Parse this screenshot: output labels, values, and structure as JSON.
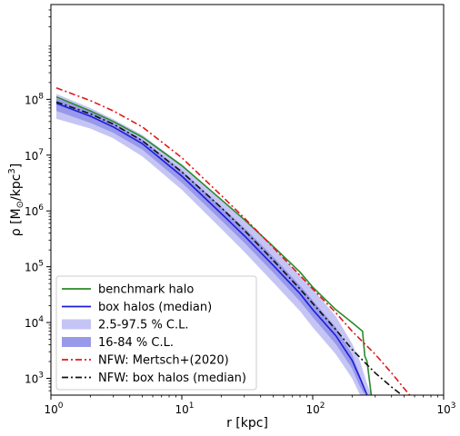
{
  "chart_data": {
    "type": "line",
    "xlabel": "r [kpc]",
    "ylabel_prefix": "ρ [M",
    "ylabel_sub": "⊙",
    "ylabel_mid": "/kpc",
    "ylabel_sup": "3",
    "ylabel_suffix": "]",
    "xscale": "log",
    "yscale": "log",
    "xlim": [
      1,
      1000
    ],
    "ylim": [
      500,
      5000000000
    ],
    "x_ticks": [
      {
        "value": 1,
        "base": "10",
        "exp": "0"
      },
      {
        "value": 10,
        "base": "10",
        "exp": "1"
      },
      {
        "value": 100,
        "base": "10",
        "exp": "2"
      },
      {
        "value": 1000,
        "base": "10",
        "exp": "3"
      }
    ],
    "y_ticks": [
      {
        "value": 1000,
        "base": "10",
        "exp": "3"
      },
      {
        "value": 10000,
        "base": "10",
        "exp": "4"
      },
      {
        "value": 100000,
        "base": "10",
        "exp": "5"
      },
      {
        "value": 1000000,
        "base": "10",
        "exp": "6"
      },
      {
        "value": 10000000,
        "base": "10",
        "exp": "7"
      },
      {
        "value": 100000000,
        "base": "10",
        "exp": "8"
      }
    ],
    "legend_position": "lower-left",
    "bands": [
      {
        "name": "2.5-97.5 % C.L.",
        "color": "#c5c5f5",
        "x": [
          1.1,
          2,
          3,
          5,
          10,
          20,
          30,
          50,
          80,
          100,
          150,
          200,
          230,
          260,
          280
        ],
        "lower": [
          45000000,
          30000000,
          20000000,
          9500000,
          2400000,
          480000,
          185000,
          52000,
          16000,
          8200,
          2700,
          1000,
          500,
          500,
          500
        ],
        "upper": [
          125000000,
          70000000,
          44000000,
          23000000,
          6800000,
          1600000,
          700000,
          220000,
          70000,
          40000,
          13000,
          4200,
          2000,
          800,
          500
        ]
      },
      {
        "name": "16-84 % C.L.",
        "color": "#9999ea",
        "x": [
          1.1,
          2,
          3,
          5,
          10,
          20,
          30,
          50,
          80,
          100,
          150,
          200,
          230,
          250
        ],
        "lower": [
          62000000,
          38000000,
          25000000,
          12500000,
          3200000,
          680000,
          270000,
          78000,
          24000,
          12500,
          4100,
          1500,
          700,
          500
        ],
        "upper": [
          105000000,
          60000000,
          38000000,
          19000000,
          5300000,
          1200000,
          500000,
          150000,
          46000,
          25000,
          8200,
          2700,
          1100,
          600
        ]
      }
    ],
    "series": [
      {
        "name": "benchmark halo",
        "color": "#2a8a2a",
        "dash": "",
        "x": [
          1.1,
          2,
          3,
          5,
          10,
          20,
          30,
          50,
          80,
          100,
          150,
          200,
          240,
          250,
          260,
          280
        ],
        "y": [
          110000000,
          62000000,
          40000000,
          21000000,
          6500000,
          1600000,
          700000,
          230000,
          80000,
          43000,
          17000,
          10000,
          7000,
          2500,
          2000,
          500
        ]
      },
      {
        "name": "box halos (median)",
        "color": "#1c1cdc",
        "dash": "",
        "x": [
          1.1,
          2,
          3,
          5,
          10,
          20,
          30,
          50,
          80,
          100,
          150,
          200,
          230,
          260
        ],
        "y": [
          85000000,
          50000000,
          32000000,
          16000000,
          4200000,
          900000,
          360000,
          105000,
          33000,
          17000,
          5800,
          2100,
          1000,
          500
        ]
      },
      {
        "name": "NFW: Mertsch+(2020)",
        "color": "#e01818",
        "dash": "7,3,2,3",
        "x": [
          1.1,
          2,
          3,
          5,
          10,
          20,
          30,
          50,
          80,
          100,
          150,
          200,
          300,
          400,
          550
        ],
        "y": [
          160000000,
          95000000,
          62000000,
          32000000,
          9000000,
          1900000,
          750000,
          220000,
          70000,
          40000,
          15000,
          7000,
          2700,
          1250,
          500
        ]
      },
      {
        "name": "NFW: box halos (median)",
        "color": "#111111",
        "dash": "7,3,2,3",
        "x": [
          1.1,
          2,
          3,
          5,
          10,
          20,
          30,
          50,
          80,
          100,
          150,
          200,
          300,
          400,
          480
        ],
        "y": [
          90000000,
          55000000,
          36000000,
          18000000,
          5000000,
          1150000,
          450000,
          130000,
          40000,
          22000,
          7500,
          3300,
          1250,
          700,
          500
        ]
      }
    ]
  }
}
